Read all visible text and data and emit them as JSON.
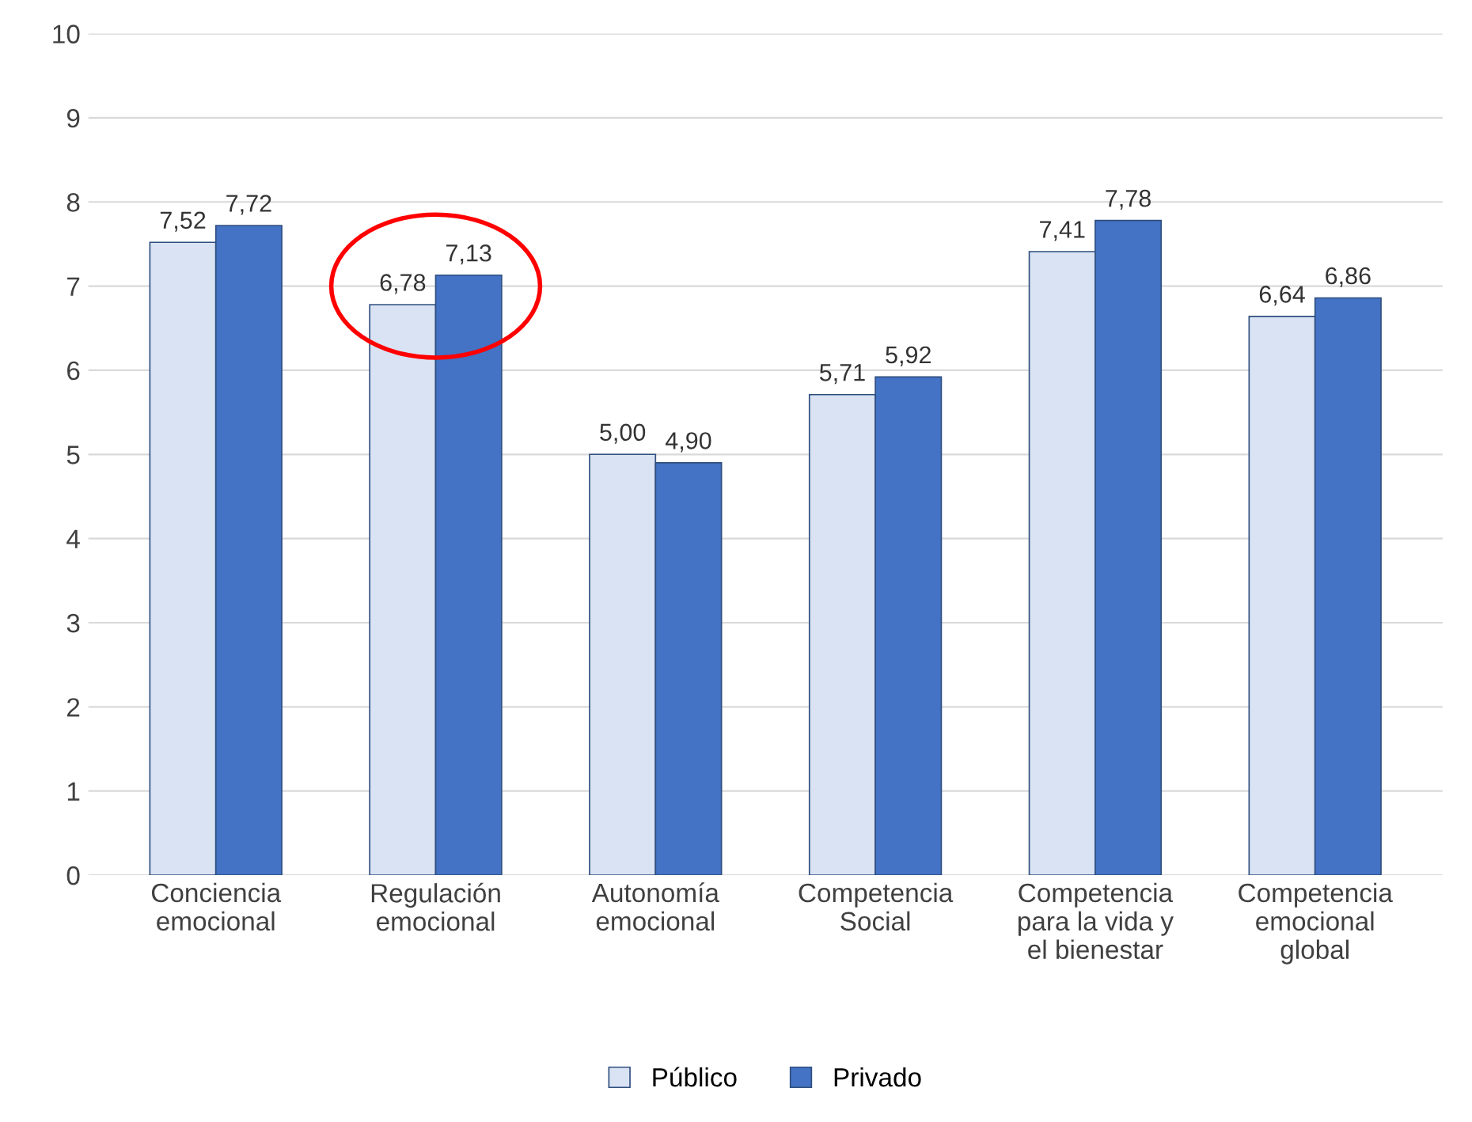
{
  "chart_data": {
    "type": "bar",
    "categories": [
      "Conciencia\nemocional",
      "Regulación\nemocional",
      "Autonomía\nemocional",
      "Competencia\nSocial",
      "Competencia\npara la vida y\nel bienestar",
      "Competencia\nemocional\nglobal"
    ],
    "series": [
      {
        "name": "Público",
        "color": "#dae3f3",
        "values": [
          7.52,
          6.78,
          5.0,
          5.71,
          7.41,
          6.64
        ],
        "value_labels": [
          "7,52",
          "6,78",
          "5,00",
          "5,71",
          "7,41",
          "6,64"
        ]
      },
      {
        "name": "Privado",
        "color": "#4472c4",
        "values": [
          7.72,
          7.13,
          4.9,
          5.92,
          7.78,
          6.86
        ],
        "value_labels": [
          "7,72",
          "7,13",
          "4,90",
          "5,92",
          "7,78",
          "6,86"
        ]
      }
    ],
    "ylim": [
      0,
      10
    ],
    "yticks": [
      0,
      1,
      2,
      3,
      4,
      5,
      6,
      7,
      8,
      9,
      10
    ],
    "grid": "y",
    "legend": "bottom"
  }
}
